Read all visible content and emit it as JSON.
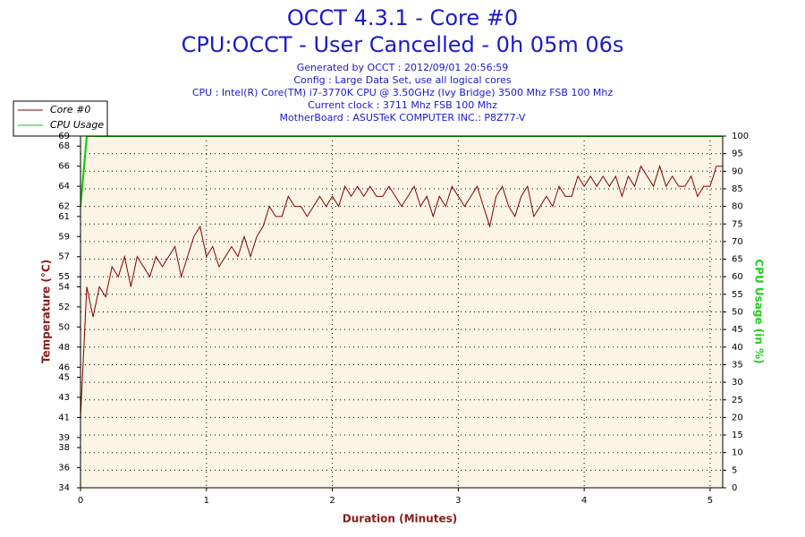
{
  "chart_data": {
    "type": "line",
    "title": "OCCT 4.3.1 - Core #0",
    "subtitle": "CPU:OCCT - User Cancelled - 0h 05m 06s",
    "info": [
      "Generated by OCCT : 2012/09/01 20:56:59",
      "Config : Large Data Set, use all logical cores",
      "CPU : Intel(R) Core(TM) i7-3770K CPU @ 3.50GHz (Ivy Bridge) 3500 Mhz FSB 100 Mhz",
      "Current clock : 3711 Mhz FSB 100 Mhz",
      "MotherBoard : ASUSTeK COMPUTER INC.: P8Z77-V"
    ],
    "xlabel": "Duration (Minutes)",
    "ylabel": "Temperature (°C)",
    "y2label": "CPU Usage (in %)",
    "x": [
      0,
      0.05,
      0.1,
      0.15,
      0.2,
      0.25,
      0.3,
      0.35,
      0.4,
      0.45,
      0.5,
      0.55,
      0.6,
      0.65,
      0.7,
      0.75,
      0.8,
      0.85,
      0.9,
      0.95,
      1,
      1.05,
      1.1,
      1.15,
      1.2,
      1.25,
      1.3,
      1.35,
      1.4,
      1.45,
      1.5,
      1.55,
      1.6,
      1.65,
      1.7,
      1.75,
      1.8,
      1.85,
      1.9,
      1.95,
      2,
      2.05,
      2.1,
      2.15,
      2.2,
      2.25,
      2.3,
      2.35,
      2.4,
      2.45,
      2.5,
      2.55,
      2.6,
      2.65,
      2.7,
      2.75,
      2.8,
      2.85,
      2.9,
      2.95,
      3,
      3.05,
      3.1,
      3.15,
      3.2,
      3.25,
      3.3,
      3.35,
      3.4,
      3.45,
      3.5,
      3.55,
      3.6,
      3.65,
      3.7,
      3.75,
      3.8,
      3.85,
      3.9,
      3.95,
      4,
      4.05,
      4.1,
      4.15,
      4.2,
      4.25,
      4.3,
      4.35,
      4.4,
      4.45,
      4.5,
      4.55,
      4.6,
      4.65,
      4.7,
      4.75,
      4.8,
      4.85,
      4.9,
      4.95,
      5,
      5.05,
      5.1
    ],
    "series": [
      {
        "name": "Core #0",
        "color": "#800000",
        "values": [
          41,
          54,
          51,
          54,
          53,
          56,
          55,
          57,
          54,
          57,
          56,
          55,
          57,
          56,
          57,
          58,
          55,
          57,
          59,
          60,
          57,
          58,
          56,
          57,
          58,
          57,
          59,
          57,
          59,
          60,
          62,
          61,
          61,
          63,
          62,
          62,
          61,
          62,
          63,
          62,
          63,
          62,
          64,
          63,
          64,
          63,
          64,
          63,
          63,
          64,
          63,
          62,
          63,
          64,
          62,
          63,
          61,
          63,
          62,
          64,
          63,
          62,
          63,
          64,
          62,
          60,
          63,
          64,
          62,
          61,
          63,
          64,
          61,
          62,
          63,
          62,
          64,
          63,
          63,
          65,
          64,
          65,
          64,
          65,
          64,
          65,
          63,
          65,
          64,
          66,
          65,
          64,
          66,
          64,
          65,
          64,
          64,
          65,
          63,
          64,
          64,
          66,
          66
        ]
      },
      {
        "name": "CPU Usage",
        "color": "#00cc00",
        "axis": "y2",
        "values": [
          80,
          100,
          100,
          100,
          100,
          100,
          100,
          100,
          100,
          100,
          100,
          100,
          100,
          100,
          100,
          100,
          100,
          100,
          100,
          100,
          100,
          100,
          100,
          100,
          100,
          100,
          100,
          100,
          100,
          100,
          100,
          100,
          100,
          100,
          100,
          100,
          100,
          100,
          100,
          100,
          100,
          100,
          100,
          100,
          100,
          100,
          100,
          100,
          100,
          100,
          100,
          100,
          100,
          100,
          100,
          100,
          100,
          100,
          100,
          100,
          100,
          100,
          100,
          100,
          100,
          100,
          100,
          100,
          100,
          100,
          100,
          100,
          100,
          100,
          100,
          100,
          100,
          100,
          100,
          100,
          100,
          100,
          100,
          100,
          100,
          100,
          100,
          100,
          100,
          100,
          100,
          100,
          100,
          100,
          100,
          100,
          100,
          100,
          100,
          100,
          100,
          100,
          100
        ]
      }
    ],
    "xlim": [
      0,
      5.1
    ],
    "xticks": [
      0,
      1,
      2,
      3,
      4,
      5
    ],
    "ylim": [
      34,
      69
    ],
    "yticks": [
      34,
      36,
      38,
      39,
      41,
      43,
      45,
      46,
      48,
      50,
      52,
      54,
      55,
      57,
      59,
      61,
      62,
      64,
      66,
      68,
      69
    ],
    "y2lim": [
      0,
      100
    ],
    "y2ticks": [
      0,
      5,
      10,
      15,
      20,
      25,
      30,
      35,
      40,
      45,
      50,
      55,
      60,
      65,
      70,
      75,
      80,
      85,
      90,
      95,
      100
    ],
    "grid": true,
    "legend": "top-left"
  }
}
